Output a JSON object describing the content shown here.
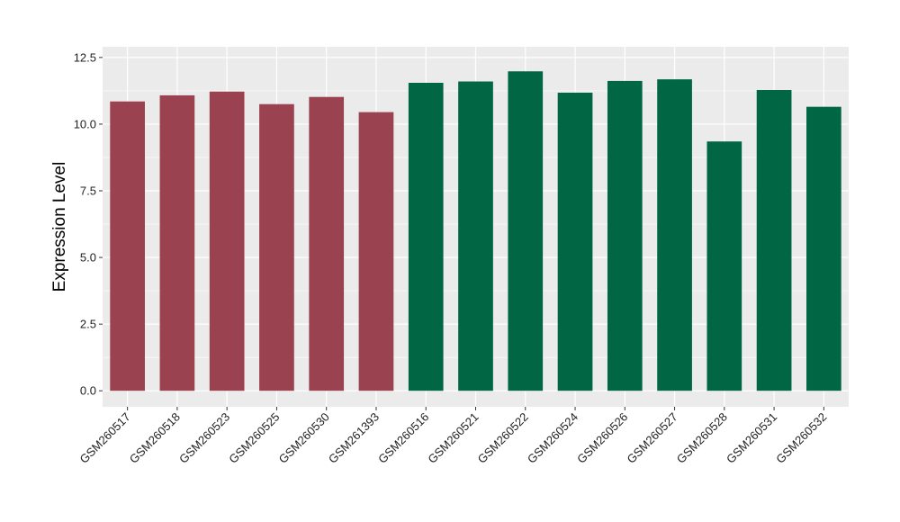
{
  "chart_data": {
    "type": "bar",
    "title": "",
    "xlabel": "",
    "ylabel": "Expression Level",
    "ylim": [
      -0.6,
      12.5
    ],
    "yticks": [
      0.0,
      2.5,
      5.0,
      7.5,
      10.0,
      12.5
    ],
    "ytick_labels": [
      "0.0",
      "2.5",
      "5.0",
      "7.5",
      "10.0",
      "12.5"
    ],
    "grid": true,
    "legend": "none",
    "categories": [
      "GSM260517",
      "GSM260518",
      "GSM260523",
      "GSM260525",
      "GSM260530",
      "GSM261393",
      "GSM260516",
      "GSM260521",
      "GSM260522",
      "GSM260524",
      "GSM260526",
      "GSM260527",
      "GSM260528",
      "GSM260531",
      "GSM260532"
    ],
    "values": [
      10.85,
      11.08,
      11.22,
      10.75,
      11.02,
      10.45,
      11.55,
      11.6,
      11.98,
      11.18,
      11.62,
      11.68,
      9.35,
      11.28,
      10.65
    ],
    "group": [
      0,
      0,
      0,
      0,
      0,
      0,
      1,
      1,
      1,
      1,
      1,
      1,
      1,
      1,
      1
    ],
    "group_colors": [
      "#9a4250",
      "#006644"
    ],
    "panel_background": "#ebebeb",
    "grid_color": "#ffffff"
  }
}
